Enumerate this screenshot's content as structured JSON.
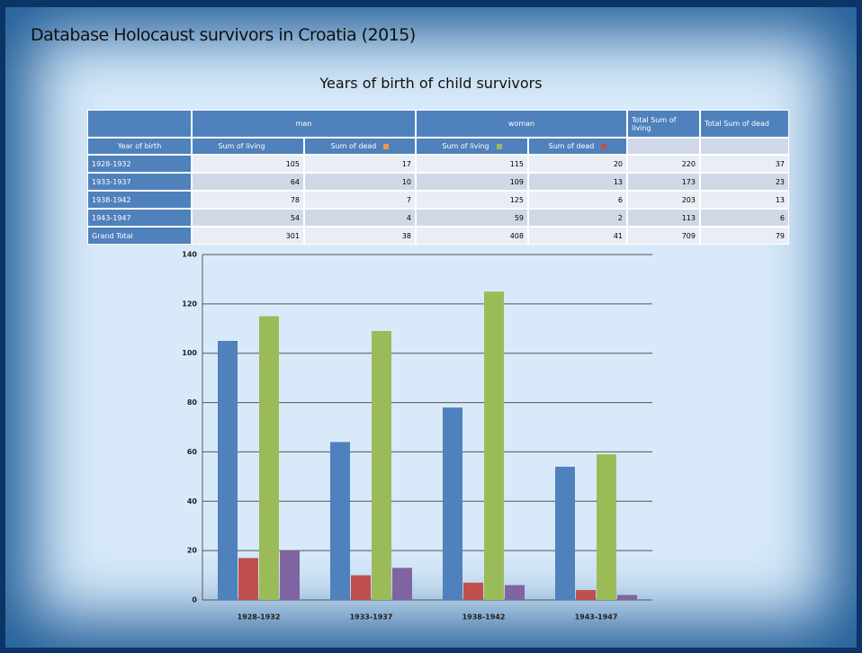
{
  "title": "Database Holocaust survivors in Croatia (2015)",
  "table": {
    "groups": [
      {
        "label": "man",
        "start": 1,
        "span": 2
      },
      {
        "label": "woman",
        "start": 3,
        "span": 2
      },
      {
        "label": "Total Sum of living",
        "start": 5,
        "span": 1
      },
      {
        "label": "Total Sum of dead",
        "start": 6,
        "span": 1
      }
    ],
    "columns": [
      {
        "label": "Year of birth"
      },
      {
        "label": "Sum of living",
        "color": "#4f81bd"
      },
      {
        "label": "Sum of dead",
        "color": "#f79646"
      },
      {
        "label": "Sum of living",
        "color": "#9bbb59"
      },
      {
        "label": "Sum of dead",
        "color": "#c0504d"
      }
    ],
    "rows": [
      [
        "1928-1932",
        105,
        17,
        115,
        20,
        220,
        37
      ],
      [
        "1933-1937",
        64,
        10,
        109,
        13,
        173,
        23
      ],
      [
        "1938-1942",
        78,
        7,
        125,
        6,
        203,
        13
      ],
      [
        "1943-1947",
        54,
        4,
        59,
        2,
        113,
        6
      ],
      [
        "Grand Total",
        301,
        38,
        408,
        41,
        709,
        79
      ]
    ]
  },
  "chart_data": {
    "type": "bar",
    "title": "Years of birth of child survivors",
    "categories": [
      "1928-1932",
      "1933-1937",
      "1938-1942",
      "1943-1947"
    ],
    "series": [
      {
        "color": "#4f81bd",
        "values": [
          105,
          64,
          78,
          54
        ]
      },
      {
        "color": "#c0504d",
        "values": [
          17,
          10,
          7,
          4
        ]
      },
      {
        "color": "#9bbb59",
        "values": [
          115,
          109,
          125,
          59
        ]
      },
      {
        "color": "#8064a2",
        "values": [
          20,
          13,
          6,
          2
        ]
      }
    ],
    "ylim": [
      0,
      140
    ],
    "yticks": [
      0,
      20,
      40,
      60,
      80,
      100,
      120,
      140
    ],
    "grid": true
  }
}
